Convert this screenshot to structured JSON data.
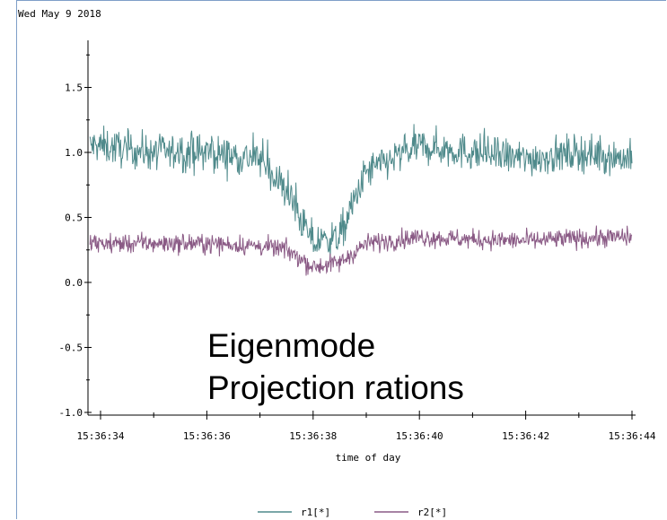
{
  "header": {
    "date": "Wed May  9 2018"
  },
  "annotation": {
    "line1": "Eigenmode",
    "line2": "Projection rations"
  },
  "chart_data": {
    "type": "line",
    "title": "",
    "xlabel": "time of day",
    "ylabel": "",
    "x_range_seconds": [
      "15:36:33.8",
      "15:36:44"
    ],
    "x_ticks": [
      "15:36:34",
      "15:36:36",
      "15:36:38",
      "15:36:40",
      "15:36:42",
      "15:36:44"
    ],
    "y_ticks": [
      "1.5",
      "1.0",
      "0.5",
      "0.0",
      "-0.5",
      "-1.0"
    ],
    "ylim": [
      -1.0,
      1.8
    ],
    "grid": false,
    "legend_position": "bottom-center",
    "x_time": [
      "15:36:34",
      "15:36:35",
      "15:36:36",
      "15:36:37",
      "15:36:37.5",
      "15:36:38",
      "15:36:38.5",
      "15:36:39",
      "15:36:40",
      "15:36:41",
      "15:36:42",
      "15:36:43",
      "15:36:44"
    ],
    "series": [
      {
        "name": "r1[*]",
        "color": "#4f8a8b",
        "values": [
          1.05,
          1.0,
          1.0,
          0.95,
          0.7,
          0.3,
          0.35,
          0.85,
          1.05,
          1.0,
          0.95,
          1.0,
          0.95
        ],
        "noise": 0.15
      },
      {
        "name": "r2[*]",
        "color": "#8a5a85",
        "values": [
          0.3,
          0.3,
          0.3,
          0.28,
          0.25,
          0.12,
          0.15,
          0.3,
          0.35,
          0.33,
          0.32,
          0.34,
          0.35
        ],
        "noise": 0.08
      }
    ]
  }
}
